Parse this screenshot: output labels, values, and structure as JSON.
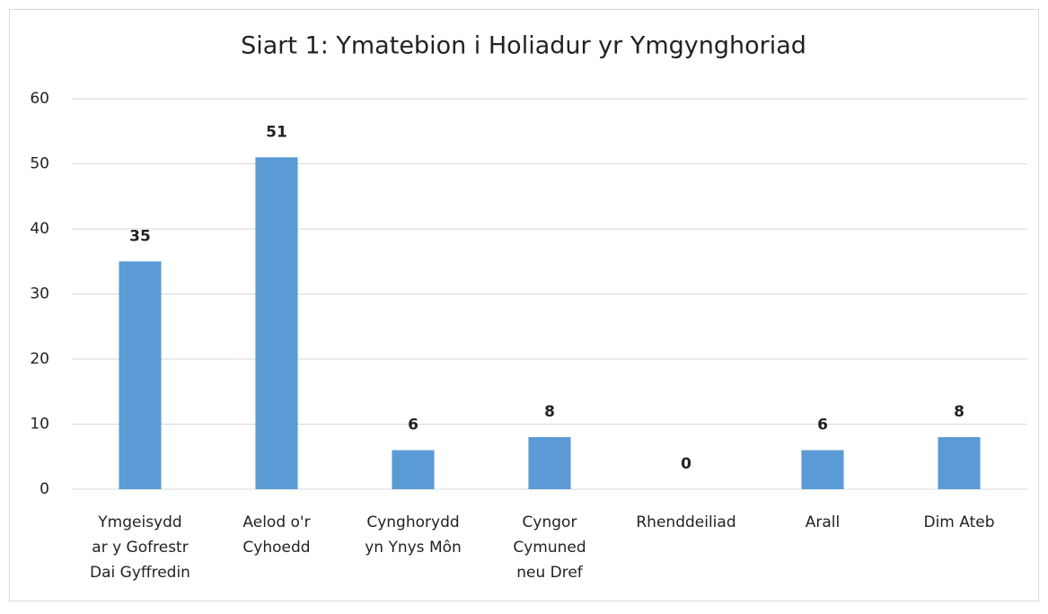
{
  "chart_data": {
    "type": "bar",
    "title": "Siart 1: Ymatebion i Holiadur yr Ymgynghoriad",
    "categories": [
      [
        "Ymgeisydd",
        "ar y Gofrestr",
        "Dai Gyffredin"
      ],
      [
        "Aelod o'r",
        "Cyhoedd"
      ],
      [
        "Cynghorydd",
        "yn Ynys Môn"
      ],
      [
        "Cyngor",
        "Cymuned",
        "neu Dref"
      ],
      [
        "Rhenddeiliad"
      ],
      [
        "Arall"
      ],
      [
        "Dim Ateb"
      ]
    ],
    "values": [
      35,
      51,
      6,
      8,
      0,
      6,
      8
    ],
    "color": "#5b9bd5",
    "ylim": [
      0,
      60
    ],
    "yticks": [
      0,
      10,
      20,
      30,
      40,
      50,
      60
    ],
    "grid": true
  }
}
